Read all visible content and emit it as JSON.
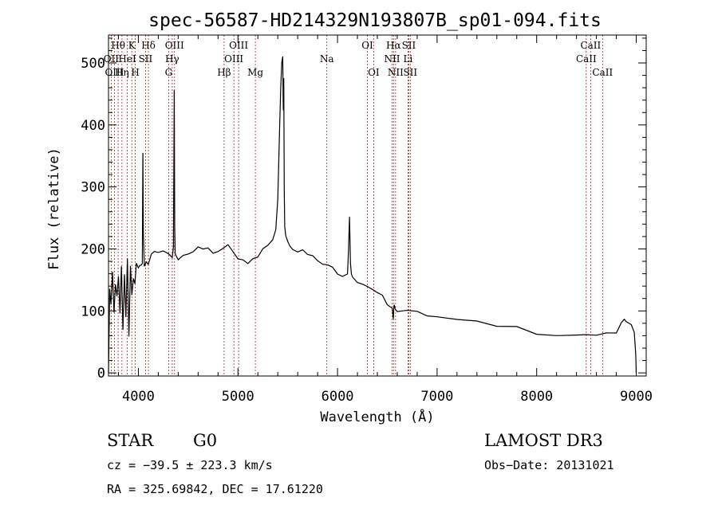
{
  "chart_data": {
    "type": "line",
    "title": "spec-56587-HD214329N193807B_sp01-094.fits",
    "xlabel": "Wavelength (Å)",
    "ylabel": "Flux (relative)",
    "xlim": [
      3700,
      9100
    ],
    "ylim": [
      -5,
      545
    ],
    "xticks": [
      4000,
      5000,
      6000,
      7000,
      8000,
      9000
    ],
    "yticks": [
      0,
      100,
      200,
      300,
      400,
      500
    ],
    "series": [
      {
        "name": "spectrum",
        "x": [
          3700,
          3712,
          3725,
          3740,
          3755,
          3770,
          3785,
          3800,
          3815,
          3830,
          3845,
          3860,
          3875,
          3890,
          3905,
          3920,
          3935,
          3950,
          3965,
          3980,
          4000,
          4015,
          4030,
          4040,
          4045,
          4050,
          4060,
          4080,
          4100,
          4130,
          4160,
          4200,
          4250,
          4300,
          4340,
          4352,
          4360,
          4365,
          4370,
          4380,
          4400,
          4450,
          4500,
          4550,
          4600,
          4650,
          4700,
          4750,
          4800,
          4850,
          4900,
          4950,
          5000,
          5050,
          5100,
          5150,
          5200,
          5250,
          5300,
          5350,
          5380,
          5400,
          5420,
          5430,
          5440,
          5450,
          5455,
          5460,
          5465,
          5470,
          5480,
          5500,
          5520,
          5550,
          5600,
          5650,
          5700,
          5750,
          5800,
          5850,
          5900,
          5950,
          6000,
          6050,
          6100,
          6110,
          6120,
          6125,
          6130,
          6140,
          6150,
          6200,
          6250,
          6300,
          6350,
          6400,
          6450,
          6500,
          6550,
          6560,
          6565,
          6570,
          6580,
          6600,
          6700,
          6800,
          6900,
          7000,
          7200,
          7400,
          7600,
          7800,
          8000,
          8200,
          8400,
          8500,
          8600,
          8700,
          8800,
          8850,
          8880,
          8900,
          8950,
          8980,
          8995,
          9000
        ],
        "y": [
          0,
          130,
          110,
          160,
          95,
          140,
          120,
          155,
          100,
          175,
          70,
          160,
          95,
          185,
          60,
          170,
          120,
          150,
          140,
          175,
          165,
          170,
          170,
          180,
          360,
          230,
          175,
          185,
          180,
          195,
          190,
          190,
          195,
          190,
          185,
          200,
          450,
          230,
          195,
          190,
          185,
          190,
          195,
          200,
          205,
          195,
          200,
          190,
          195,
          200,
          205,
          195,
          185,
          185,
          180,
          185,
          190,
          205,
          210,
          220,
          230,
          280,
          400,
          460,
          500,
          510,
          420,
          480,
          300,
          240,
          225,
          215,
          210,
          205,
          200,
          195,
          190,
          185,
          180,
          175,
          170,
          168,
          165,
          160,
          165,
          200,
          255,
          220,
          180,
          160,
          150,
          145,
          140,
          135,
          130,
          125,
          120,
          115,
          110,
          90,
          110,
          110,
          108,
          104,
          98,
          94,
          90,
          87,
          82,
          78,
          74,
          71,
          68,
          66,
          64,
          65,
          64,
          65,
          68,
          75,
          85,
          78,
          72,
          65,
          30,
          0
        ]
      }
    ],
    "spectral_lines": [
      {
        "label": "Hθ",
        "x": 3797,
        "row": 1
      },
      {
        "label": "OII",
        "x": 3727,
        "row": 2
      },
      {
        "label": "OIII",
        "x": 3760,
        "row": 3
      },
      {
        "label": "K",
        "x": 3934,
        "row": 1
      },
      {
        "label": "HeI",
        "x": 3889,
        "row": 2
      },
      {
        "label": "Hη",
        "x": 3835,
        "row": 3
      },
      {
        "label": "Hδ",
        "x": 4101,
        "row": 1
      },
      {
        "label": "SII",
        "x": 4072,
        "row": 2
      },
      {
        "label": "H",
        "x": 3969,
        "row": 3
      },
      {
        "label": "OIII",
        "x": 4363,
        "row": 1
      },
      {
        "label": "Hγ",
        "x": 4340,
        "row": 2
      },
      {
        "label": "G",
        "x": 4304,
        "row": 3
      },
      {
        "label": "OIII",
        "x": 5007,
        "row": 1
      },
      {
        "label": "OIII",
        "x": 4959,
        "row": 2
      },
      {
        "label": "Hβ",
        "x": 4861,
        "row": 3
      },
      {
        "label": "Mg",
        "x": 5175,
        "row": 3
      },
      {
        "label": "Na",
        "x": 5893,
        "row": 2
      },
      {
        "label": "OI",
        "x": 6300,
        "row": 1
      },
      {
        "label": "OI",
        "x": 6363,
        "row": 3
      },
      {
        "label": "Hα",
        "x": 6563,
        "row": 1
      },
      {
        "label": "NII",
        "x": 6548,
        "row": 2
      },
      {
        "label": "NII",
        "x": 6583,
        "row": 3
      },
      {
        "label": "SII",
        "x": 6716,
        "row": 1
      },
      {
        "label": "Li",
        "x": 6708,
        "row": 2
      },
      {
        "label": "SII",
        "x": 6731,
        "row": 3
      },
      {
        "label": "CaII",
        "x": 8542,
        "row": 1
      },
      {
        "label": "CaII",
        "x": 8498,
        "row": 2
      },
      {
        "label": "CaII",
        "x": 8662,
        "row": 3
      }
    ]
  },
  "info": {
    "object_type": "STAR",
    "subclass": "G0",
    "survey": "LAMOST DR3",
    "cz": "cz = −39.5 ± 223.3 km/s",
    "obs_date": "Obs−Date: 20131021",
    "coords": "RA = 325.69842, DEC =  17.61220"
  }
}
